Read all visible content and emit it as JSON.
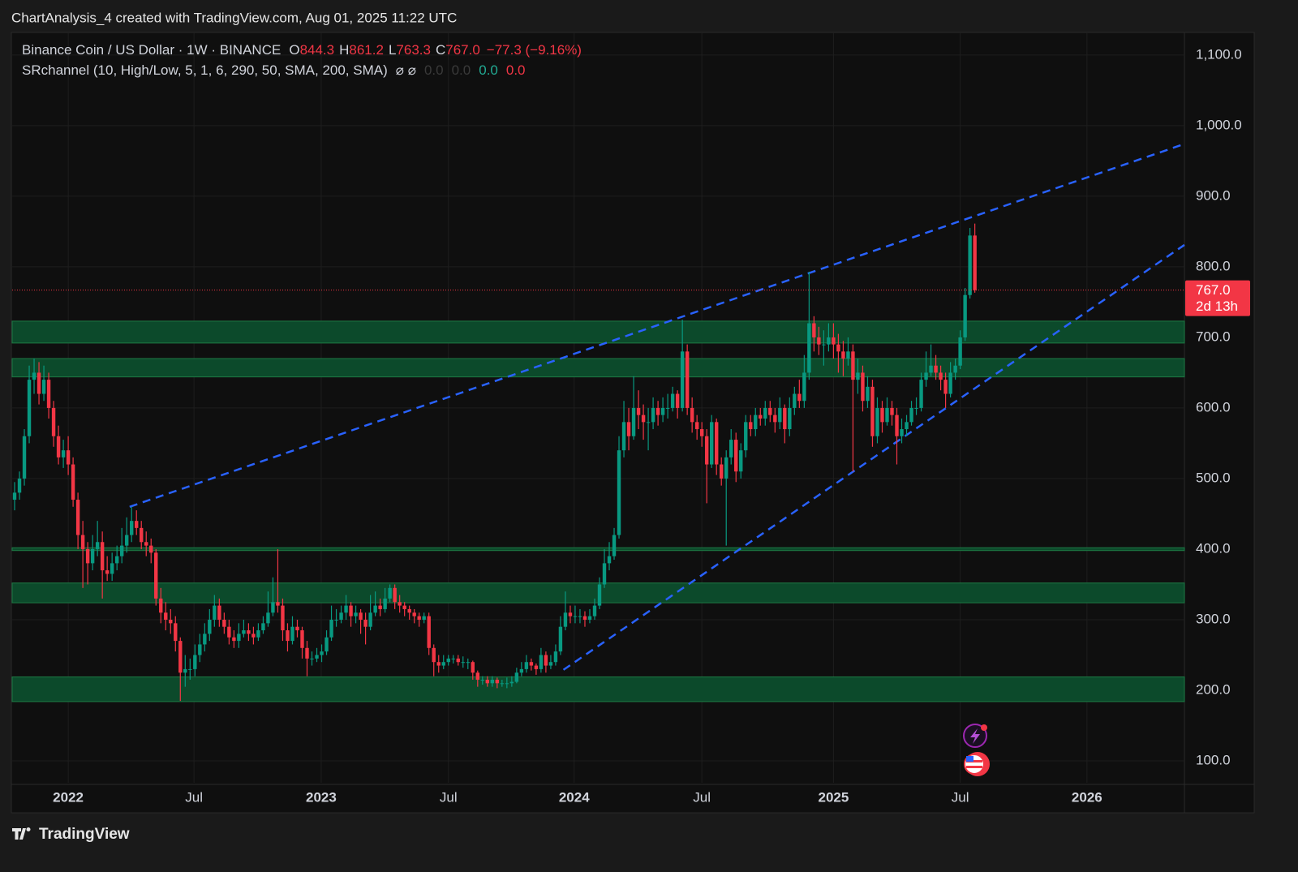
{
  "header": {
    "title": "ChartAnalysis_4 created with TradingView.com, Aug 01, 2025 11:22 UTC"
  },
  "footer": {
    "brand": "TradingView"
  },
  "chart_data": {
    "type": "candlestick",
    "legend": {
      "symbol": "Binance Coin / US Dollar · 1W · BINANCE",
      "open_label": "O",
      "open": "844.3",
      "high_label": "H",
      "high": "861.2",
      "low_label": "L",
      "low": "763.3",
      "close_label": "C",
      "close": "767.0",
      "change": "−77.3 (−9.16%)",
      "indicator": "SRchannel (10, High/Low, 5, 1, 6, 290, 50, SMA, 200, SMA)",
      "indicator_icons": "⌀  ⌀",
      "indicator_values": [
        "0.0",
        "0.0",
        "0.0",
        "0.0"
      ]
    },
    "up_color": "#089981",
    "down_color": "#f23645",
    "zone_color": "#0c4a2b",
    "zone_border": "#1e7a45",
    "trend_color": "#2962ff",
    "price_line_color": "#f23645",
    "grid": true,
    "xlim": [
      -0.5,
      240
    ],
    "ylim": [
      69,
      1132
    ],
    "xticks": [
      {
        "value": 11,
        "label": "2022"
      },
      {
        "value": 36.8,
        "label": "Jul"
      },
      {
        "value": 62.9,
        "label": "2023"
      },
      {
        "value": 89,
        "label": "Jul"
      },
      {
        "value": 114.8,
        "label": "2024"
      },
      {
        "value": 141,
        "label": "Jul"
      },
      {
        "value": 168,
        "label": "2025"
      },
      {
        "value": 194,
        "label": "Jul"
      },
      {
        "value": 220,
        "label": "2026"
      }
    ],
    "yticks": [
      {
        "value": 100,
        "label": "100.0"
      },
      {
        "value": 200,
        "label": "200.0"
      },
      {
        "value": 300,
        "label": "300.0"
      },
      {
        "value": 400,
        "label": "400.0"
      },
      {
        "value": 500,
        "label": "500.0"
      },
      {
        "value": 600,
        "label": "600.0"
      },
      {
        "value": 700,
        "label": "700.0"
      },
      {
        "value": 800,
        "label": "800.0"
      },
      {
        "value": 900,
        "label": "900.0"
      },
      {
        "value": 1000,
        "label": "1,000.0"
      },
      {
        "value": 1100,
        "label": "1,100.0"
      }
    ],
    "zones": [
      [
        184,
        219
      ],
      [
        324,
        352
      ],
      [
        398,
        402
      ],
      [
        644,
        670
      ],
      [
        692,
        723
      ]
    ],
    "trendlines": [
      {
        "x": [
          23.6,
          240
        ],
        "y": [
          460,
          974
        ]
      },
      {
        "x": [
          112.6,
          240
        ],
        "y": [
          229,
          831
        ]
      }
    ],
    "last_price": {
      "value": 767,
      "label": "767.0",
      "countdown": "2d 13h"
    },
    "candles": [
      [
        470,
        495,
        455,
        480
      ],
      [
        480,
        510,
        470,
        500
      ],
      [
        500,
        570,
        490,
        560
      ],
      [
        560,
        660,
        550,
        640
      ],
      [
        640,
        670,
        620,
        650
      ],
      [
        650,
        665,
        605,
        620
      ],
      [
        620,
        660,
        610,
        640
      ],
      [
        640,
        650,
        585,
        600
      ],
      [
        600,
        610,
        545,
        560
      ],
      [
        560,
        575,
        520,
        530
      ],
      [
        530,
        555,
        515,
        540
      ],
      [
        540,
        560,
        505,
        520
      ],
      [
        520,
        530,
        460,
        470
      ],
      [
        470,
        480,
        400,
        420
      ],
      [
        420,
        440,
        345,
        400
      ],
      [
        400,
        410,
        350,
        380
      ],
      [
        380,
        420,
        370,
        400
      ],
      [
        400,
        440,
        390,
        410
      ],
      [
        410,
        425,
        330,
        370
      ],
      [
        370,
        390,
        355,
        365
      ],
      [
        365,
        395,
        355,
        380
      ],
      [
        380,
        405,
        370,
        390
      ],
      [
        390,
        430,
        380,
        405
      ],
      [
        405,
        445,
        395,
        420
      ],
      [
        420,
        460,
        410,
        440
      ],
      [
        440,
        455,
        420,
        430
      ],
      [
        430,
        440,
        400,
        410
      ],
      [
        410,
        425,
        390,
        405
      ],
      [
        405,
        415,
        380,
        395
      ],
      [
        395,
        400,
        320,
        330
      ],
      [
        330,
        345,
        295,
        310
      ],
      [
        310,
        325,
        285,
        300
      ],
      [
        300,
        315,
        280,
        295
      ],
      [
        295,
        305,
        255,
        270
      ],
      [
        270,
        275,
        185,
        225
      ],
      [
        225,
        250,
        205,
        230
      ],
      [
        230,
        245,
        215,
        230
      ],
      [
        230,
        265,
        220,
        250
      ],
      [
        250,
        280,
        240,
        265
      ],
      [
        265,
        295,
        255,
        280
      ],
      [
        280,
        315,
        270,
        300
      ],
      [
        300,
        335,
        290,
        320
      ],
      [
        320,
        330,
        290,
        300
      ],
      [
        300,
        310,
        280,
        290
      ],
      [
        290,
        300,
        265,
        275
      ],
      [
        275,
        285,
        260,
        270
      ],
      [
        270,
        295,
        260,
        280
      ],
      [
        280,
        300,
        275,
        285
      ],
      [
        285,
        295,
        270,
        280
      ],
      [
        280,
        290,
        265,
        275
      ],
      [
        275,
        295,
        270,
        285
      ],
      [
        285,
        305,
        280,
        295
      ],
      [
        295,
        340,
        290,
        310
      ],
      [
        310,
        360,
        305,
        325
      ],
      [
        325,
        400,
        310,
        320
      ],
      [
        320,
        330,
        270,
        285
      ],
      [
        285,
        295,
        255,
        270
      ],
      [
        270,
        305,
        265,
        290
      ],
      [
        290,
        300,
        275,
        285
      ],
      [
        285,
        290,
        245,
        260
      ],
      [
        260,
        270,
        220,
        245
      ],
      [
        245,
        255,
        235,
        245
      ],
      [
        245,
        260,
        240,
        250
      ],
      [
        250,
        265,
        240,
        255
      ],
      [
        255,
        285,
        250,
        275
      ],
      [
        275,
        320,
        270,
        300
      ],
      [
        300,
        315,
        290,
        300
      ],
      [
        300,
        320,
        295,
        310
      ],
      [
        310,
        335,
        300,
        320
      ],
      [
        320,
        325,
        290,
        305
      ],
      [
        305,
        320,
        295,
        310
      ],
      [
        310,
        315,
        280,
        300
      ],
      [
        300,
        310,
        265,
        290
      ],
      [
        290,
        335,
        285,
        310
      ],
      [
        310,
        340,
        305,
        320
      ],
      [
        320,
        330,
        305,
        315
      ],
      [
        315,
        345,
        310,
        330
      ],
      [
        330,
        350,
        325,
        345
      ],
      [
        345,
        350,
        315,
        325
      ],
      [
        325,
        335,
        310,
        320
      ],
      [
        320,
        325,
        305,
        315
      ],
      [
        315,
        320,
        300,
        310
      ],
      [
        310,
        315,
        295,
        305
      ],
      [
        305,
        310,
        290,
        300
      ],
      [
        300,
        310,
        295,
        305
      ],
      [
        305,
        310,
        250,
        260
      ],
      [
        260,
        265,
        220,
        240
      ],
      [
        240,
        250,
        225,
        235
      ],
      [
        235,
        250,
        230,
        240
      ],
      [
        240,
        250,
        235,
        245
      ],
      [
        245,
        250,
        238,
        245
      ],
      [
        245,
        250,
        235,
        240
      ],
      [
        240,
        248,
        232,
        240
      ],
      [
        240,
        245,
        230,
        240
      ],
      [
        240,
        242,
        215,
        225
      ],
      [
        225,
        228,
        205,
        215
      ],
      [
        215,
        220,
        208,
        215
      ],
      [
        215,
        220,
        205,
        210
      ],
      [
        210,
        220,
        205,
        215
      ],
      [
        215,
        218,
        203,
        210
      ],
      [
        210,
        215,
        205,
        210
      ],
      [
        210,
        218,
        203,
        210
      ],
      [
        210,
        220,
        205,
        212
      ],
      [
        212,
        232,
        210,
        225
      ],
      [
        225,
        240,
        220,
        230
      ],
      [
        230,
        250,
        225,
        240
      ],
      [
        240,
        245,
        228,
        235
      ],
      [
        235,
        238,
        222,
        230
      ],
      [
        230,
        260,
        225,
        250
      ],
      [
        250,
        255,
        225,
        235
      ],
      [
        235,
        250,
        230,
        240
      ],
      [
        240,
        265,
        235,
        255
      ],
      [
        255,
        305,
        250,
        290
      ],
      [
        290,
        340,
        285,
        310
      ],
      [
        310,
        320,
        295,
        305
      ],
      [
        305,
        320,
        295,
        305
      ],
      [
        305,
        315,
        295,
        305
      ],
      [
        305,
        312,
        290,
        300
      ],
      [
        300,
        315,
        295,
        305
      ],
      [
        305,
        330,
        300,
        320
      ],
      [
        320,
        360,
        315,
        350
      ],
      [
        350,
        400,
        345,
        380
      ],
      [
        380,
        410,
        370,
        390
      ],
      [
        390,
        430,
        385,
        420
      ],
      [
        420,
        560,
        415,
        540
      ],
      [
        540,
        610,
        530,
        580
      ],
      [
        580,
        600,
        540,
        560
      ],
      [
        560,
        645,
        555,
        600
      ],
      [
        600,
        625,
        570,
        590
      ],
      [
        590,
        605,
        555,
        580
      ],
      [
        580,
        600,
        540,
        580
      ],
      [
        580,
        615,
        570,
        600
      ],
      [
        600,
        610,
        575,
        590
      ],
      [
        590,
        615,
        580,
        600
      ],
      [
        600,
        620,
        585,
        600
      ],
      [
        600,
        630,
        595,
        620
      ],
      [
        620,
        625,
        585,
        600
      ],
      [
        600,
        725,
        595,
        680
      ],
      [
        680,
        690,
        590,
        600
      ],
      [
        600,
        615,
        565,
        580
      ],
      [
        580,
        590,
        555,
        570
      ],
      [
        570,
        580,
        545,
        560
      ],
      [
        560,
        570,
        465,
        520
      ],
      [
        520,
        590,
        515,
        580
      ],
      [
        580,
        585,
        505,
        520
      ],
      [
        520,
        530,
        490,
        500
      ],
      [
        500,
        540,
        405,
        530
      ],
      [
        530,
        570,
        520,
        555
      ],
      [
        555,
        565,
        495,
        510
      ],
      [
        510,
        550,
        500,
        540
      ],
      [
        540,
        590,
        530,
        580
      ],
      [
        580,
        590,
        560,
        570
      ],
      [
        570,
        600,
        560,
        590
      ],
      [
        590,
        600,
        575,
        585
      ],
      [
        585,
        610,
        575,
        600
      ],
      [
        600,
        610,
        580,
        590
      ],
      [
        590,
        600,
        565,
        580
      ],
      [
        580,
        615,
        570,
        600
      ],
      [
        600,
        605,
        550,
        570
      ],
      [
        570,
        615,
        560,
        600
      ],
      [
        600,
        630,
        590,
        620
      ],
      [
        620,
        640,
        600,
        610
      ],
      [
        610,
        675,
        600,
        650
      ],
      [
        650,
        793,
        640,
        720
      ],
      [
        720,
        730,
        680,
        700
      ],
      [
        700,
        715,
        675,
        690
      ],
      [
        690,
        710,
        660,
        690
      ],
      [
        690,
        720,
        680,
        700
      ],
      [
        700,
        720,
        670,
        690
      ],
      [
        690,
        705,
        650,
        680
      ],
      [
        680,
        695,
        645,
        670
      ],
      [
        670,
        700,
        660,
        680
      ],
      [
        680,
        690,
        510,
        640
      ],
      [
        640,
        670,
        620,
        650
      ],
      [
        650,
        660,
        595,
        610
      ],
      [
        610,
        645,
        600,
        630
      ],
      [
        630,
        640,
        545,
        560
      ],
      [
        560,
        615,
        550,
        600
      ],
      [
        600,
        610,
        565,
        580
      ],
      [
        580,
        615,
        575,
        600
      ],
      [
        600,
        610,
        575,
        590
      ],
      [
        590,
        600,
        520,
        560
      ],
      [
        560,
        585,
        550,
        570
      ],
      [
        570,
        590,
        560,
        580
      ],
      [
        580,
        610,
        575,
        600
      ],
      [
        600,
        615,
        590,
        600
      ],
      [
        600,
        650,
        595,
        640
      ],
      [
        640,
        680,
        630,
        650
      ],
      [
        650,
        690,
        645,
        660
      ],
      [
        660,
        675,
        640,
        650
      ],
      [
        650,
        660,
        625,
        640
      ],
      [
        640,
        650,
        600,
        620
      ],
      [
        620,
        665,
        615,
        650
      ],
      [
        650,
        670,
        640,
        660
      ],
      [
        660,
        710,
        655,
        700
      ],
      [
        700,
        770,
        695,
        760
      ],
      [
        760,
        855,
        755,
        844.3
      ],
      [
        844.3,
        861.2,
        763.3,
        767
      ]
    ]
  }
}
